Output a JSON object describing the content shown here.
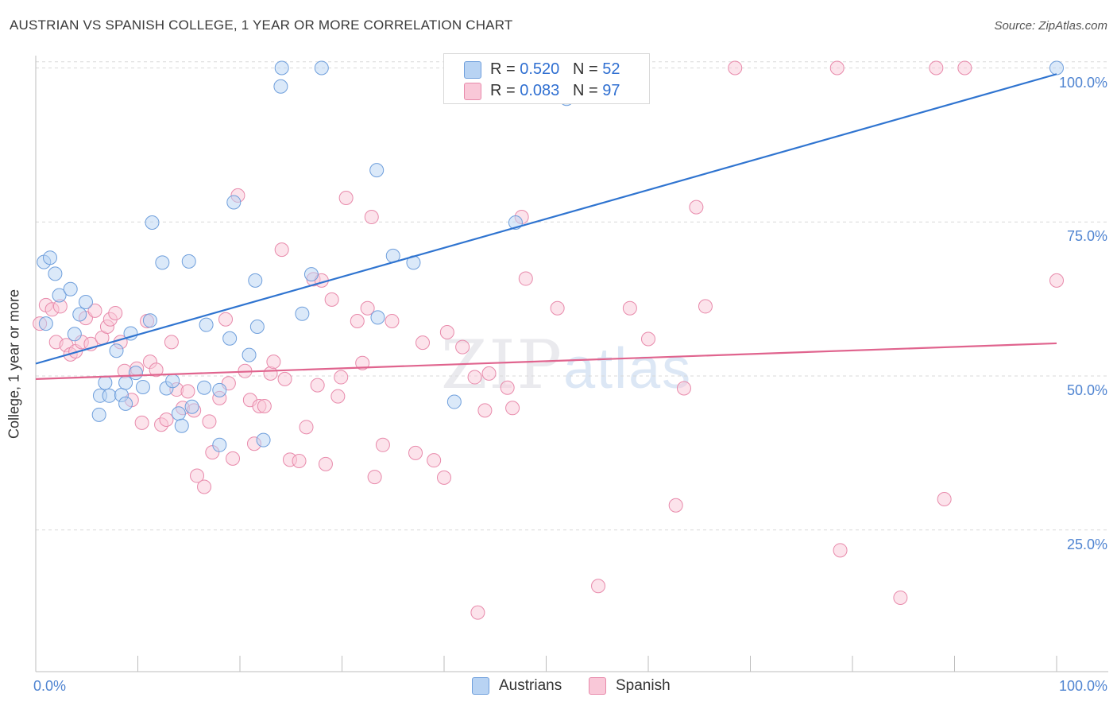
{
  "title": "AUSTRIAN VS SPANISH COLLEGE, 1 YEAR OR MORE CORRELATION CHART",
  "source": "Source: ZipAtlas.com",
  "watermark": {
    "zip": "ZIP",
    "atlas": "atlas"
  },
  "stats": [
    {
      "r_label": "R = ",
      "r_value": "0.520",
      "n_label": "N = ",
      "n_value": "52",
      "color": "#b8d3f3",
      "border": "#6f9fdc"
    },
    {
      "r_label": "R = ",
      "r_value": "0.083",
      "n_label": "N = ",
      "n_value": "97",
      "color": "#f9c8d8",
      "border": "#e88aab"
    }
  ],
  "legend": [
    {
      "label": "Austrians",
      "color": "#b8d3f3",
      "border": "#6f9fdc"
    },
    {
      "label": "Spanish",
      "color": "#f9c8d8",
      "border": "#e88aab"
    }
  ],
  "chart_data": {
    "type": "scatter",
    "title": "AUSTRIAN VS SPANISH COLLEGE, 1 YEAR OR MORE CORRELATION CHART",
    "xlabel": "",
    "ylabel": "College, 1 year or more",
    "xlim": [
      0,
      100
    ],
    "ylim": [
      2,
      102
    ],
    "x_tick_labels": [
      "0.0%",
      "100.0%"
    ],
    "y_ticks": [
      25,
      50,
      75,
      100
    ],
    "y_tick_labels": [
      "25.0%",
      "50.0%",
      "75.0%",
      "100.0%"
    ],
    "grid": true,
    "legend_position": "bottom-center",
    "series": [
      {
        "name": "Austrians",
        "color": "#6f9fdc",
        "fill": "#b8d3f3",
        "trend_color": "#2f74d0",
        "trend": [
          [
            0,
            52.0
          ],
          [
            100,
            99.0
          ]
        ],
        "points": [
          [
            1,
            58.5
          ],
          [
            0.8,
            68.5
          ],
          [
            1.4,
            69.2
          ],
          [
            1.9,
            66.6
          ],
          [
            2.3,
            63.1
          ],
          [
            3.4,
            64.1
          ],
          [
            3.8,
            56.8
          ],
          [
            4.3,
            60.0
          ],
          [
            4.9,
            62.0
          ],
          [
            6.2,
            43.7
          ],
          [
            6.3,
            46.8
          ],
          [
            7.2,
            46.8
          ],
          [
            6.8,
            48.9
          ],
          [
            7.9,
            54.1
          ],
          [
            8.4,
            46.9
          ],
          [
            8.8,
            45.5
          ],
          [
            8.8,
            48.9
          ],
          [
            9.3,
            56.9
          ],
          [
            9.8,
            50.5
          ],
          [
            10.5,
            48.2
          ],
          [
            11.2,
            59.0
          ],
          [
            11.4,
            74.9
          ],
          [
            12.4,
            68.4
          ],
          [
            12.8,
            48.0
          ],
          [
            13.4,
            49.2
          ],
          [
            14.0,
            43.9
          ],
          [
            14.3,
            41.9
          ],
          [
            15.0,
            68.6
          ],
          [
            15.3,
            45.0
          ],
          [
            16.5,
            48.1
          ],
          [
            16.7,
            58.3
          ],
          [
            18.0,
            38.8
          ],
          [
            18.0,
            47.7
          ],
          [
            19.0,
            56.1
          ],
          [
            19.4,
            78.2
          ],
          [
            20.9,
            53.4
          ],
          [
            21.5,
            65.5
          ],
          [
            21.7,
            58.0
          ],
          [
            22.3,
            39.6
          ],
          [
            24.1,
            100.0
          ],
          [
            26.1,
            60.1
          ],
          [
            27.0,
            66.5
          ],
          [
            28.0,
            100.0
          ],
          [
            33.5,
            59.5
          ],
          [
            33.4,
            83.4
          ],
          [
            35.0,
            69.5
          ],
          [
            37.0,
            68.4
          ],
          [
            41.0,
            45.8
          ],
          [
            47.0,
            74.9
          ],
          [
            52.0,
            95.0
          ],
          [
            100.0,
            100.0
          ],
          [
            24.0,
            97.0
          ]
        ]
      },
      {
        "name": "Spanish",
        "color": "#e88aab",
        "fill": "#f9c8d8",
        "trend_color": "#e0648e",
        "trend": [
          [
            0,
            49.5
          ],
          [
            100,
            55.3
          ]
        ],
        "points": [
          [
            0.4,
            58.5
          ],
          [
            1.0,
            61.5
          ],
          [
            1.6,
            60.8
          ],
          [
            2.0,
            55.5
          ],
          [
            2.4,
            61.3
          ],
          [
            3.0,
            55.0
          ],
          [
            3.4,
            53.5
          ],
          [
            3.9,
            54.0
          ],
          [
            4.5,
            55.5
          ],
          [
            4.9,
            59.4
          ],
          [
            5.4,
            55.2
          ],
          [
            5.8,
            60.6
          ],
          [
            6.5,
            56.2
          ],
          [
            7.0,
            58.0
          ],
          [
            7.3,
            59.2
          ],
          [
            7.8,
            60.2
          ],
          [
            8.3,
            55.5
          ],
          [
            8.7,
            50.8
          ],
          [
            9.4,
            46.1
          ],
          [
            9.9,
            51.2
          ],
          [
            10.4,
            42.4
          ],
          [
            10.9,
            58.9
          ],
          [
            11.2,
            52.3
          ],
          [
            11.8,
            51.0
          ],
          [
            12.3,
            42.1
          ],
          [
            12.8,
            42.9
          ],
          [
            13.3,
            55.5
          ],
          [
            13.8,
            47.8
          ],
          [
            14.4,
            44.8
          ],
          [
            14.9,
            47.5
          ],
          [
            15.5,
            44.4
          ],
          [
            15.8,
            33.8
          ],
          [
            16.5,
            32.0
          ],
          [
            17.0,
            42.6
          ],
          [
            17.3,
            37.6
          ],
          [
            18.0,
            46.4
          ],
          [
            18.6,
            59.2
          ],
          [
            18.9,
            48.8
          ],
          [
            19.3,
            36.6
          ],
          [
            19.8,
            79.3
          ],
          [
            20.5,
            50.8
          ],
          [
            21.0,
            46.1
          ],
          [
            21.4,
            39.0
          ],
          [
            21.9,
            45.1
          ],
          [
            22.4,
            45.1
          ],
          [
            23.0,
            50.4
          ],
          [
            23.3,
            52.3
          ],
          [
            24.1,
            70.5
          ],
          [
            24.4,
            49.5
          ],
          [
            24.9,
            36.4
          ],
          [
            25.8,
            36.2
          ],
          [
            26.5,
            41.7
          ],
          [
            27.2,
            65.7
          ],
          [
            27.6,
            48.5
          ],
          [
            28.0,
            65.5
          ],
          [
            28.4,
            35.7
          ],
          [
            29.0,
            62.4
          ],
          [
            29.6,
            46.7
          ],
          [
            29.9,
            49.8
          ],
          [
            30.4,
            78.9
          ],
          [
            31.5,
            58.9
          ],
          [
            32.0,
            52.1
          ],
          [
            32.5,
            61.0
          ],
          [
            32.9,
            75.8
          ],
          [
            33.2,
            33.6
          ],
          [
            34.0,
            38.8
          ],
          [
            34.9,
            58.9
          ],
          [
            37.2,
            37.5
          ],
          [
            37.9,
            55.4
          ],
          [
            39.0,
            36.3
          ],
          [
            40.0,
            33.5
          ],
          [
            40.3,
            57.1
          ],
          [
            41.8,
            54.7
          ],
          [
            43.0,
            49.8
          ],
          [
            43.3,
            11.6
          ],
          [
            44.0,
            44.4
          ],
          [
            44.4,
            50.4
          ],
          [
            46.2,
            48.1
          ],
          [
            46.7,
            44.8
          ],
          [
            47.6,
            75.8
          ],
          [
            48.0,
            65.8
          ],
          [
            51.1,
            61.0
          ],
          [
            55.1,
            15.9
          ],
          [
            58.2,
            61.0
          ],
          [
            60.0,
            56.0
          ],
          [
            62.7,
            29.0
          ],
          [
            63.5,
            48.0
          ],
          [
            64.7,
            77.4
          ],
          [
            65.6,
            61.3
          ],
          [
            68.5,
            100.0
          ],
          [
            78.5,
            100.0
          ],
          [
            78.8,
            21.7
          ],
          [
            84.7,
            14.0
          ],
          [
            88.2,
            100.0
          ],
          [
            89.0,
            30.0
          ],
          [
            91.0,
            100.0
          ],
          [
            100.0,
            65.5
          ]
        ]
      }
    ]
  }
}
